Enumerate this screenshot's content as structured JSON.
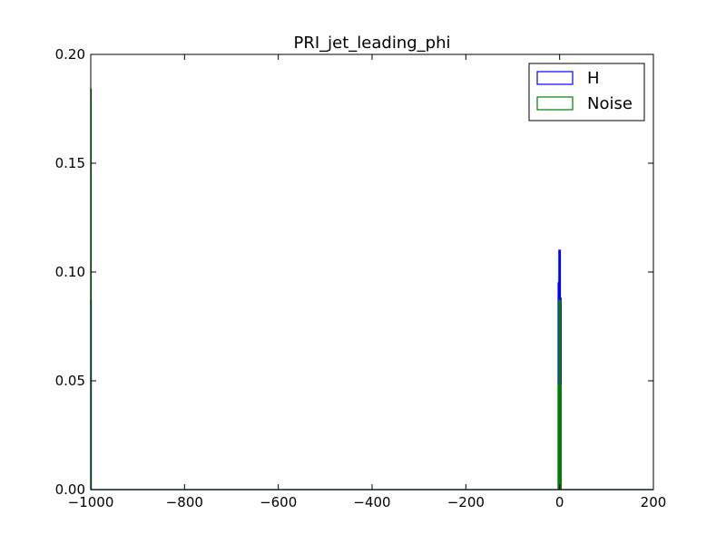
{
  "chart_data": {
    "type": "step-histogram",
    "title": "PRI_jet_leading_phi",
    "xlim": [
      -1000,
      200
    ],
    "ylim": [
      0,
      0.2
    ],
    "xticks": [
      -1000,
      -800,
      -600,
      -400,
      -200,
      0,
      200
    ],
    "xtick_labels": [
      "−1000",
      "−800",
      "−600",
      "−400",
      "−200",
      "0",
      "200"
    ],
    "yticks": [
      0,
      0.05,
      0.1,
      0.15,
      0.2
    ],
    "ytick_labels": [
      "0.00",
      "0.05",
      "0.10",
      "0.15",
      "0.20"
    ],
    "grid": false,
    "legend_position": "top-right",
    "series": [
      {
        "name": "H",
        "color": "#0000ff",
        "bins": [
          {
            "x0": -1000,
            "x1": -999,
            "y": 0.087
          },
          {
            "x0": -3.2,
            "x1": -1.6,
            "y": 0.095
          },
          {
            "x0": -1.6,
            "x1": 0.0,
            "y": 0.11
          },
          {
            "x0": 0.0,
            "x1": 1.6,
            "y": 0.11
          },
          {
            "x0": 1.6,
            "x1": 3.2,
            "y": 0.088
          }
        ]
      },
      {
        "name": "Noise",
        "color": "#008000",
        "bins": [
          {
            "x0": -1000,
            "x1": -999,
            "y": 0.184
          },
          {
            "x0": -3.2,
            "x1": -1.6,
            "y": 0.048
          },
          {
            "x0": -1.6,
            "x1": 0.0,
            "y": 0.087
          },
          {
            "x0": 0.0,
            "x1": 1.6,
            "y": 0.087
          },
          {
            "x0": 1.6,
            "x1": 3.2,
            "y": 0.048
          }
        ]
      }
    ]
  }
}
